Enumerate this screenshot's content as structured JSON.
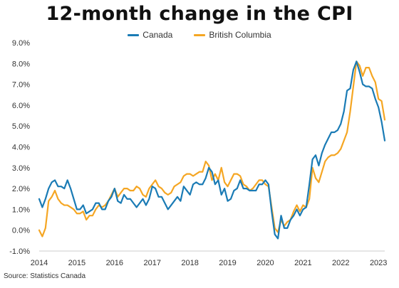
{
  "chart_data": {
    "type": "line",
    "title": "12-month change in the CPI",
    "xlabel": "",
    "ylabel": "",
    "ylim": [
      -1.0,
      9.0
    ],
    "yticks": [
      -1.0,
      0.0,
      1.0,
      2.0,
      3.0,
      4.0,
      5.0,
      6.0,
      7.0,
      8.0,
      9.0
    ],
    "ytick_labels": [
      "-1.0%",
      "0.0%",
      "1.0%",
      "2.0%",
      "3.0%",
      "4.0%",
      "5.0%",
      "6.0%",
      "7.0%",
      "8.0%",
      "9.0%"
    ],
    "xtick_labels": [
      "2014",
      "2015",
      "2016",
      "2017",
      "2018",
      "2019",
      "2020",
      "2021",
      "2022",
      "2023"
    ],
    "x_start": "2014-01",
    "x_end": "2023-03",
    "grid": false,
    "legend_position": "top-center",
    "source": "Source: Statistics Canada",
    "series": [
      {
        "name": "Canada",
        "color": "#1a7bb5",
        "values": [
          1.5,
          1.1,
          1.5,
          2.0,
          2.3,
          2.4,
          2.1,
          2.1,
          2.0,
          2.4,
          2.0,
          1.5,
          1.0,
          1.0,
          1.2,
          0.8,
          0.9,
          1.0,
          1.3,
          1.3,
          1.0,
          1.0,
          1.4,
          1.6,
          2.0,
          1.4,
          1.3,
          1.7,
          1.5,
          1.5,
          1.3,
          1.1,
          1.3,
          1.5,
          1.2,
          1.5,
          2.1,
          2.0,
          1.6,
          1.6,
          1.3,
          1.0,
          1.2,
          1.4,
          1.6,
          1.4,
          2.1,
          1.9,
          1.7,
          2.2,
          2.3,
          2.2,
          2.2,
          2.5,
          3.0,
          2.8,
          2.2,
          2.4,
          1.7,
          2.0,
          1.4,
          1.5,
          1.9,
          2.0,
          2.4,
          2.0,
          2.0,
          1.9,
          1.9,
          1.9,
          2.2,
          2.2,
          2.4,
          2.2,
          0.9,
          -0.2,
          -0.4,
          0.7,
          0.1,
          0.1,
          0.5,
          0.7,
          1.0,
          0.7,
          1.0,
          1.1,
          2.2,
          3.4,
          3.6,
          3.1,
          3.7,
          4.1,
          4.4,
          4.7,
          4.7,
          4.8,
          5.1,
          5.7,
          6.7,
          6.8,
          7.7,
          8.1,
          7.6,
          7.0,
          6.9,
          6.9,
          6.8,
          6.3,
          5.9,
          5.2,
          4.3
        ]
      },
      {
        "name": "British Columbia",
        "color": "#f5a623",
        "values": [
          0.0,
          -0.3,
          0.1,
          1.4,
          1.6,
          1.9,
          1.5,
          1.3,
          1.2,
          1.2,
          1.1,
          1.0,
          0.8,
          0.8,
          0.9,
          0.5,
          0.7,
          0.7,
          1.0,
          1.2,
          1.1,
          1.2,
          1.4,
          1.7,
          2.0,
          1.6,
          1.8,
          2.0,
          2.0,
          1.9,
          1.9,
          2.1,
          2.0,
          1.7,
          1.6,
          2.0,
          2.2,
          2.4,
          2.1,
          2.0,
          1.8,
          1.7,
          1.8,
          2.1,
          2.2,
          2.3,
          2.6,
          2.7,
          2.7,
          2.6,
          2.7,
          2.8,
          2.8,
          3.3,
          3.1,
          2.4,
          2.7,
          2.4,
          3.0,
          2.3,
          2.1,
          2.4,
          2.7,
          2.7,
          2.6,
          2.2,
          2.1,
          1.9,
          2.0,
          2.2,
          2.4,
          2.4,
          2.2,
          2.1,
          1.1,
          0.1,
          -0.1,
          0.5,
          0.2,
          0.4,
          0.5,
          0.9,
          1.2,
          0.9,
          1.2,
          1.1,
          1.5,
          3.0,
          2.5,
          2.3,
          2.8,
          3.3,
          3.5,
          3.6,
          3.6,
          3.7,
          3.9,
          4.3,
          4.7,
          5.7,
          6.9,
          8.1,
          7.9,
          7.4,
          7.8,
          7.8,
          7.4,
          7.1,
          6.3,
          6.2,
          5.3
        ]
      }
    ]
  }
}
